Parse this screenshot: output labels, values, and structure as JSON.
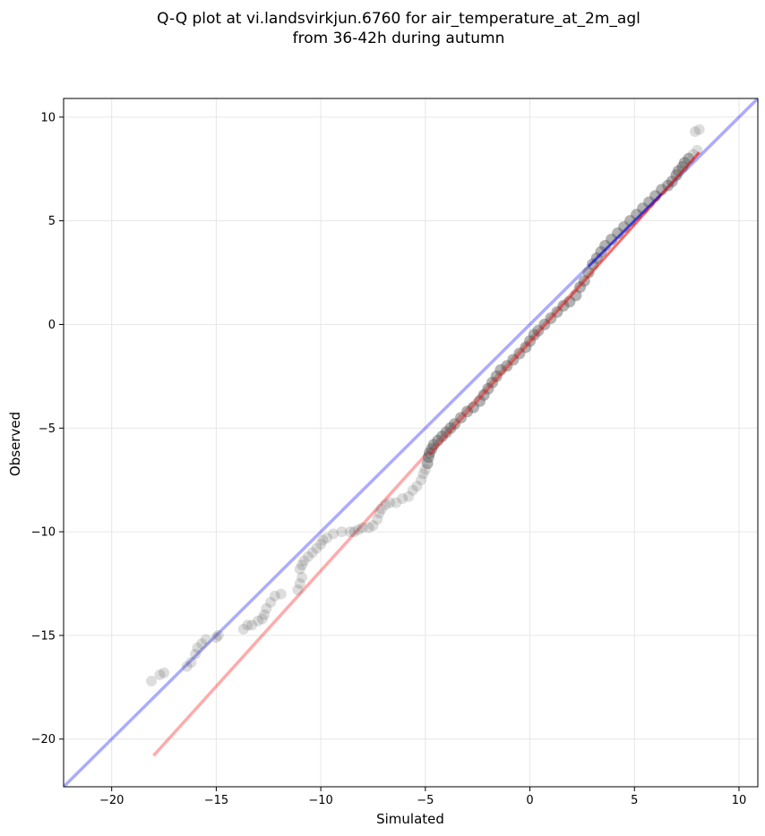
{
  "chart_data": {
    "type": "scatter",
    "title": "Q-Q plot at vi.landsvirkjun.6760 for air_temperature_at_2m_agl",
    "subtitle": "from 36-42h during autumn",
    "xlabel": "Simulated",
    "ylabel": "Observed",
    "xlim": [
      -22.3,
      10.9
    ],
    "ylim": [
      -22.3,
      10.9
    ],
    "xticks": [
      -20,
      -15,
      -10,
      -5,
      0,
      5,
      10
    ],
    "yticks": [
      -20,
      -15,
      -10,
      -5,
      0,
      5,
      10
    ],
    "xtick_labels": [
      "−20",
      "−15",
      "−10",
      "−5",
      "0",
      "5",
      "10"
    ],
    "ytick_labels": [
      "−20",
      "−15",
      "−10",
      "−5",
      "0",
      "5",
      "10"
    ],
    "grid": true,
    "colors": {
      "points": "#555555",
      "identity_line": "#0000ff",
      "fit_line": "#ff0000",
      "grid": "#e6e6e6"
    },
    "reference_lines": [
      {
        "kind": "identity",
        "x": [
          -22.3,
          10.9
        ],
        "y": [
          -22.3,
          10.9
        ]
      },
      {
        "kind": "fit",
        "x": [
          -18.0,
          8.1
        ],
        "y": [
          -20.8,
          8.3
        ]
      }
    ],
    "highlight_segments": [
      {
        "kind": "fit-overlay",
        "x": [
          -4.8,
          8.1
        ],
        "y": [
          -6.3,
          8.3
        ]
      },
      {
        "kind": "identity-overlay",
        "x": [
          2.8,
          6.3
        ],
        "y": [
          2.8,
          6.3
        ]
      }
    ],
    "points": [
      [
        -18.1,
        -17.2
      ],
      [
        -17.7,
        -16.9
      ],
      [
        -17.5,
        -16.8
      ],
      [
        -16.4,
        -16.5
      ],
      [
        -16.2,
        -16.3
      ],
      [
        -16.0,
        -15.9
      ],
      [
        -15.9,
        -15.6
      ],
      [
        -15.7,
        -15.4
      ],
      [
        -15.5,
        -15.2
      ],
      [
        -15.0,
        -15.1
      ],
      [
        -14.9,
        -15.0
      ],
      [
        -13.7,
        -14.7
      ],
      [
        -13.5,
        -14.5
      ],
      [
        -13.3,
        -14.5
      ],
      [
        -13.0,
        -14.3
      ],
      [
        -12.8,
        -14.2
      ],
      [
        -12.7,
        -14.0
      ],
      [
        -12.6,
        -13.7
      ],
      [
        -12.4,
        -13.4
      ],
      [
        -12.2,
        -13.1
      ],
      [
        -11.9,
        -13.0
      ],
      [
        -11.1,
        -12.8
      ],
      [
        -11.0,
        -12.5
      ],
      [
        -10.9,
        -12.2
      ],
      [
        -11.0,
        -11.8
      ],
      [
        -10.9,
        -11.6
      ],
      [
        -10.8,
        -11.4
      ],
      [
        -10.6,
        -11.2
      ],
      [
        -10.4,
        -11.0
      ],
      [
        -10.2,
        -10.8
      ],
      [
        -10.0,
        -10.6
      ],
      [
        -9.9,
        -10.4
      ],
      [
        -9.7,
        -10.3
      ],
      [
        -9.4,
        -10.1
      ],
      [
        -9.0,
        -10.0
      ],
      [
        -8.6,
        -10.0
      ],
      [
        -8.4,
        -10.0
      ],
      [
        -8.2,
        -9.9
      ],
      [
        -8.0,
        -9.8
      ],
      [
        -7.7,
        -9.8
      ],
      [
        -7.5,
        -9.7
      ],
      [
        -7.3,
        -9.4
      ],
      [
        -7.2,
        -9.1
      ],
      [
        -7.1,
        -8.9
      ],
      [
        -6.9,
        -8.7
      ],
      [
        -6.7,
        -8.6
      ],
      [
        -6.4,
        -8.6
      ],
      [
        -6.1,
        -8.4
      ],
      [
        -5.8,
        -8.3
      ],
      [
        -5.6,
        -8.0
      ],
      [
        -5.4,
        -7.8
      ],
      [
        -5.2,
        -7.5
      ],
      [
        -5.1,
        -7.2
      ],
      [
        -5.0,
        -7.0
      ],
      [
        -4.9,
        -6.7
      ],
      [
        -4.85,
        -6.4
      ],
      [
        -4.8,
        -6.2
      ],
      [
        -4.7,
        -6.0
      ],
      [
        -4.6,
        -5.8
      ],
      [
        -4.4,
        -5.6
      ],
      [
        -4.2,
        -5.4
      ],
      [
        -4.0,
        -5.2
      ],
      [
        -3.8,
        -5.0
      ],
      [
        -3.6,
        -4.8
      ],
      [
        -3.3,
        -4.5
      ],
      [
        -3.0,
        -4.2
      ],
      [
        -2.7,
        -4.0
      ],
      [
        -2.4,
        -3.7
      ],
      [
        -2.2,
        -3.4
      ],
      [
        -2.0,
        -3.1
      ],
      [
        -1.8,
        -2.8
      ],
      [
        -1.6,
        -2.5
      ],
      [
        -1.4,
        -2.2
      ],
      [
        -1.1,
        -2.0
      ],
      [
        -0.8,
        -1.7
      ],
      [
        -0.5,
        -1.4
      ],
      [
        -0.2,
        -1.1
      ],
      [
        0.0,
        -0.8
      ],
      [
        0.2,
        -0.5
      ],
      [
        0.4,
        -0.3
      ],
      [
        0.7,
        0.0
      ],
      [
        1.0,
        0.3
      ],
      [
        1.3,
        0.6
      ],
      [
        1.6,
        0.9
      ],
      [
        1.9,
        1.1
      ],
      [
        2.2,
        1.4
      ],
      [
        2.4,
        1.8
      ],
      [
        2.6,
        2.1
      ],
      [
        2.8,
        2.5
      ],
      [
        3.0,
        2.9
      ],
      [
        3.2,
        3.2
      ],
      [
        3.4,
        3.5
      ],
      [
        3.6,
        3.8
      ],
      [
        3.9,
        4.1
      ],
      [
        4.2,
        4.4
      ],
      [
        4.5,
        4.7
      ],
      [
        4.8,
        5.0
      ],
      [
        5.1,
        5.3
      ],
      [
        5.4,
        5.6
      ],
      [
        5.7,
        5.9
      ],
      [
        6.0,
        6.2
      ],
      [
        6.3,
        6.5
      ],
      [
        6.6,
        6.7
      ],
      [
        6.8,
        6.9
      ],
      [
        7.0,
        7.2
      ],
      [
        7.1,
        7.4
      ],
      [
        7.3,
        7.6
      ],
      [
        7.4,
        7.8
      ],
      [
        7.6,
        8.0
      ],
      [
        7.8,
        8.2
      ],
      [
        8.0,
        8.4
      ],
      [
        7.9,
        9.3
      ],
      [
        8.1,
        9.4
      ]
    ]
  }
}
